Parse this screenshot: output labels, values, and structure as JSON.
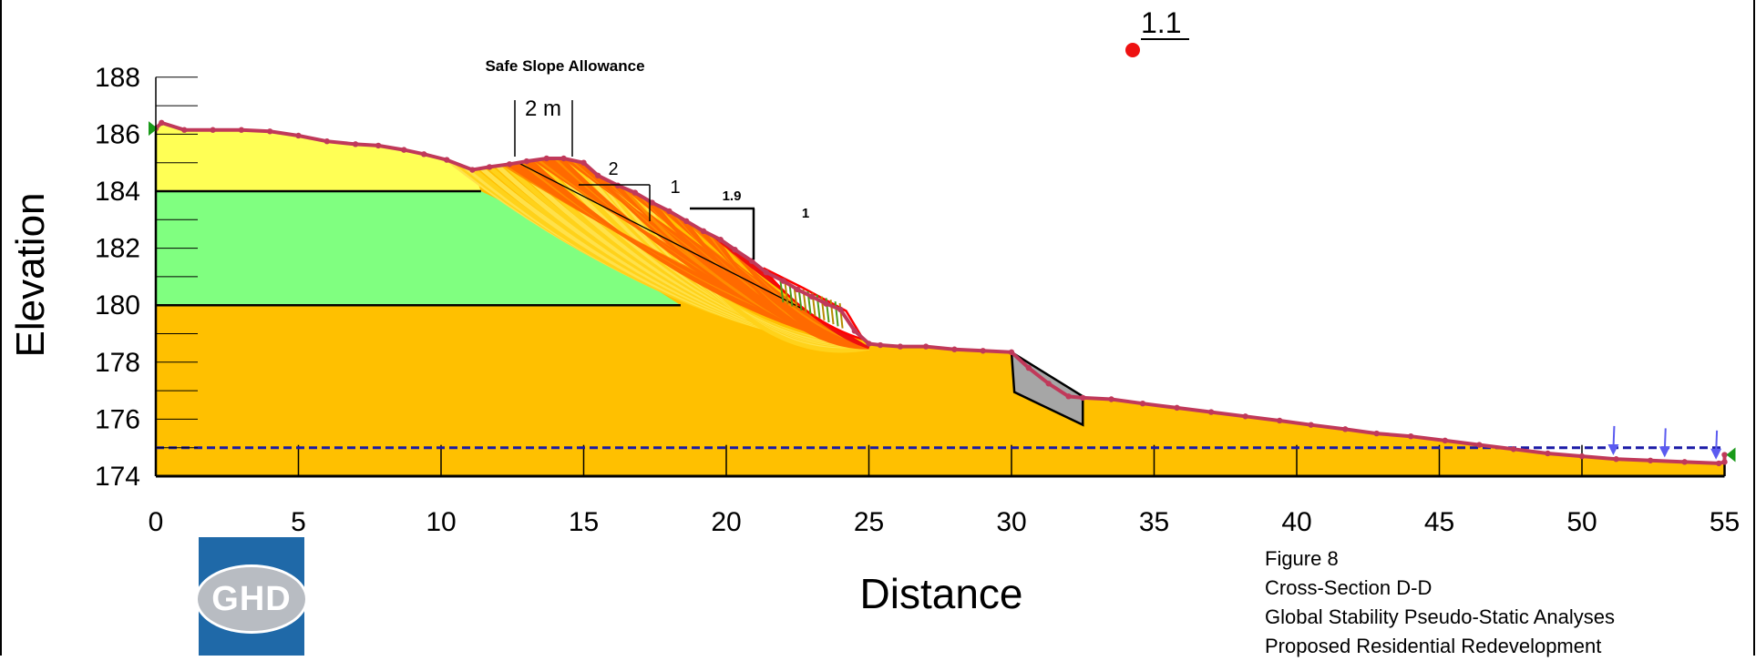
{
  "diagram": {
    "xlabel": "Distance",
    "ylabel": "Elevation",
    "x_ticks": [
      "0",
      "5",
      "10",
      "15",
      "20",
      "25",
      "30",
      "35",
      "40",
      "45",
      "50",
      "55"
    ],
    "y_ticks": [
      "188",
      "186",
      "184",
      "182",
      "180",
      "178",
      "176",
      "174"
    ],
    "safe_slope_label": "Safe Slope Allowance",
    "width_label": "2 m",
    "upper_ratio_h": "2",
    "upper_ratio_v": "1",
    "lower_ratio_h": "1.9",
    "lower_ratio_v": "1",
    "factor_of_safety": "1.1",
    "colors": {
      "topsoil": "#ffff55",
      "clay": "#80ff80",
      "base": "#ffc000",
      "surface_line": "#c0395a",
      "water_table": "#1a1aa6",
      "slip_surface_dense": "#ff6a00",
      "slip_critical": "#ff0000",
      "fos_marker": "#ee1111",
      "wall": "#a6a6a6",
      "load_arrow": "#5b5bf0"
    }
  },
  "caption": {
    "line1": "Figure 8",
    "line2": "Cross-Section D-D",
    "line3": "Global Stability Pseudo-Static Analyses",
    "line4": "Proposed Residential Redevelopment"
  },
  "logo": {
    "text": "GHD",
    "color": "#1f69a8"
  }
}
